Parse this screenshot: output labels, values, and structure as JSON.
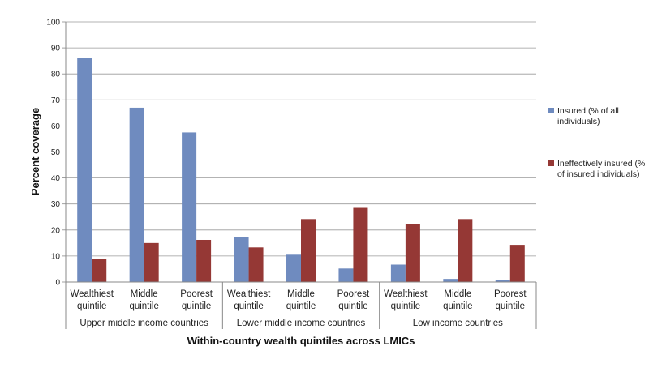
{
  "chart_data": {
    "type": "bar",
    "ylabel": "Percent coverage",
    "xlabel": "Within-country wealth quintiles across LMICs",
    "ylim": [
      0,
      100
    ],
    "yticks": [
      0,
      10,
      20,
      30,
      40,
      50,
      60,
      70,
      80,
      90,
      100
    ],
    "grid": true,
    "legend_position": "right",
    "categories": [
      [
        "Wealthiest",
        "quintile"
      ],
      [
        "Middle",
        "quintile"
      ],
      [
        "Poorest",
        "quintile"
      ],
      [
        "Wealthiest",
        "quintile"
      ],
      [
        "Middle",
        "quintile"
      ],
      [
        "Poorest",
        "quintile"
      ],
      [
        "Wealthiest",
        "quintile"
      ],
      [
        "Middle",
        "quintile"
      ],
      [
        "Poorest",
        "quintile"
      ]
    ],
    "groups": [
      "Upper middle income countries",
      "Lower middle income countries",
      "Low income countries"
    ],
    "series": [
      {
        "name": [
          "Insured (% of all",
          "individuals)"
        ],
        "color": "#6f8bbf",
        "values": [
          86,
          67,
          57.5,
          17.3,
          10.5,
          5.2,
          6.7,
          1.2,
          0.7
        ]
      },
      {
        "name": [
          "Ineffectively insured (%",
          "of insured individuals)"
        ],
        "color": "#953835",
        "values": [
          9,
          15,
          16.2,
          13.3,
          24.2,
          28.5,
          22.3,
          24.2,
          14.3
        ]
      }
    ]
  }
}
